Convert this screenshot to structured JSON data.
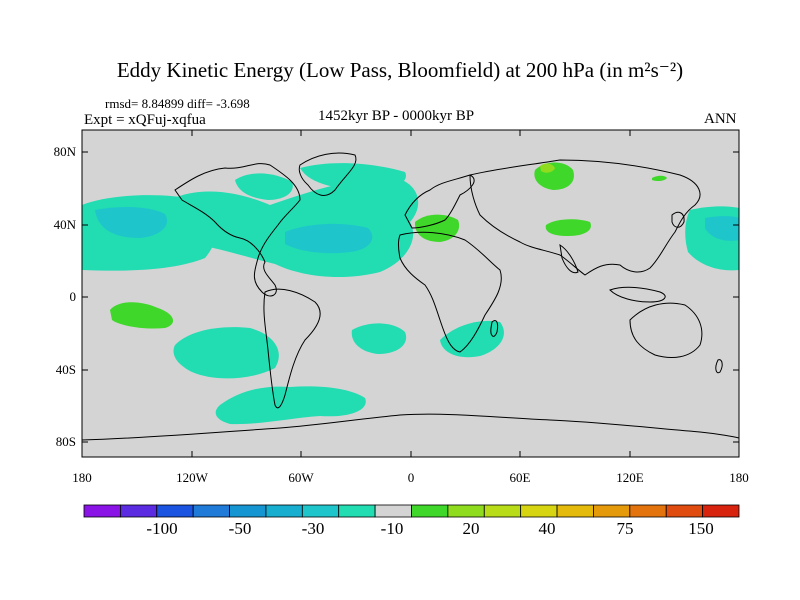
{
  "title": "Eddy Kinetic Energy (Low Pass, Bloomfield) at 200 hPa (in m²s⁻²)",
  "stats": "rmsd= 8.84899 diff= -3.698",
  "experiment": "Expt = xQFuj-xqfua",
  "period": "1452kyr BP - 0000kyr BP",
  "season": "ANN",
  "chart_data": {
    "type": "heatmap",
    "field": "Eddy kinetic energy difference at 200 hPa",
    "units": "m2 s-2",
    "x_ticks": [
      "180",
      "120W",
      "60W",
      "0",
      "60E",
      "120E",
      "180"
    ],
    "x_tick_values": [
      -180,
      -120,
      -60,
      0,
      60,
      120,
      180
    ],
    "y_ticks": [
      "80N",
      "40N",
      "0",
      "40S",
      "80S"
    ],
    "y_tick_values": [
      80,
      40,
      0,
      -40,
      -80
    ],
    "xlim": [
      -180,
      180
    ],
    "ylim": [
      -90,
      90
    ],
    "colorbar": {
      "labels": [
        "-100",
        "-50",
        "-30",
        "-10",
        "20",
        "40",
        "75",
        "150"
      ],
      "colors": [
        "#8a14e6",
        "#5a2be0",
        "#1a54e0",
        "#1f7ad8",
        "#1596d2",
        "#17aed0",
        "#1ec6cc",
        "#22dcb2",
        "#d4d4d4",
        "#3fd72a",
        "#8fdb1e",
        "#b9dc18",
        "#d7d412",
        "#e4ba0d",
        "#e59a0c",
        "#e3740d",
        "#e04c10",
        "#d8230f"
      ]
    },
    "anomalies": [
      {
        "region": "North Atlantic storm track",
        "value_range": "-30 to -10"
      },
      {
        "region": "North Pacific (east)",
        "value_range": "-30 to -10"
      },
      {
        "region": "North Pacific (west)",
        "value_range": "-30 to -10"
      },
      {
        "region": "Southern Ocean south of South America",
        "value_range": "-30 to -10"
      },
      {
        "region": "South Pacific",
        "value_range": "-30 to -10"
      },
      {
        "region": "South Atlantic",
        "value_range": "-30 to -10"
      },
      {
        "region": "Southwest Indian Ocean",
        "value_range": "-30 to -10"
      },
      {
        "region": "Mediterranean",
        "value_range": "10 to 20"
      },
      {
        "region": "Central Asia",
        "value_range": "10 to 20"
      },
      {
        "region": "Siberia",
        "value_range": "10 to 20"
      },
      {
        "region": "Tropical central Pacific",
        "value_range": "10 to 20"
      }
    ]
  }
}
